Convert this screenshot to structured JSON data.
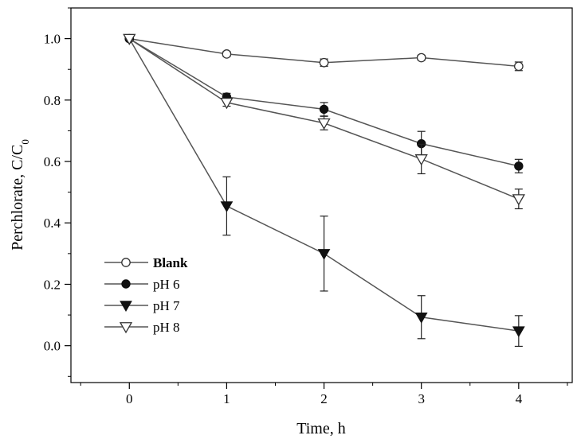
{
  "chart_data": {
    "type": "line",
    "title": "",
    "xlabel": "Time, h",
    "ylabel_main": "Perchlorate, C/C",
    "ylabel_sub": "0",
    "x": [
      0,
      1,
      2,
      3,
      4
    ],
    "xlim": [
      -0.6,
      4.55
    ],
    "ylim": [
      -0.12,
      1.1
    ],
    "xticks": [
      0,
      1,
      2,
      3,
      4
    ],
    "xtick_labels": [
      "0",
      "1",
      "2",
      "3",
      "4"
    ],
    "yticks": [
      0.0,
      0.2,
      0.4,
      0.6,
      0.8,
      1.0
    ],
    "ytick_labels": [
      "0.0",
      "0.2",
      "0.4",
      "0.6",
      "0.8",
      "1.0"
    ],
    "legend_position": "lower-left",
    "series": [
      {
        "name": "Blank",
        "marker": "circle-open",
        "values": [
          1.0,
          0.95,
          0.922,
          0.938,
          0.91
        ],
        "errors": [
          0.0,
          0.008,
          0.012,
          0.008,
          0.014
        ]
      },
      {
        "name": "pH 6",
        "marker": "circle-filled",
        "values": [
          1.0,
          0.81,
          0.77,
          0.658,
          0.585
        ],
        "errors": [
          0.0,
          0.012,
          0.022,
          0.04,
          0.022
        ]
      },
      {
        "name": "pH 7",
        "marker": "triangle-down-filled",
        "values": [
          1.0,
          0.455,
          0.3,
          0.093,
          0.048
        ],
        "errors": [
          0.0,
          0.095,
          0.122,
          0.07,
          0.05
        ]
      },
      {
        "name": "pH 8",
        "marker": "triangle-down-open",
        "values": [
          1.0,
          0.792,
          0.725,
          0.608,
          0.478
        ],
        "errors": [
          0.0,
          0.012,
          0.022,
          0.048,
          0.032
        ]
      }
    ],
    "colors": {
      "line": "#555555",
      "marker": "#111111",
      "axis": "#000000"
    }
  }
}
